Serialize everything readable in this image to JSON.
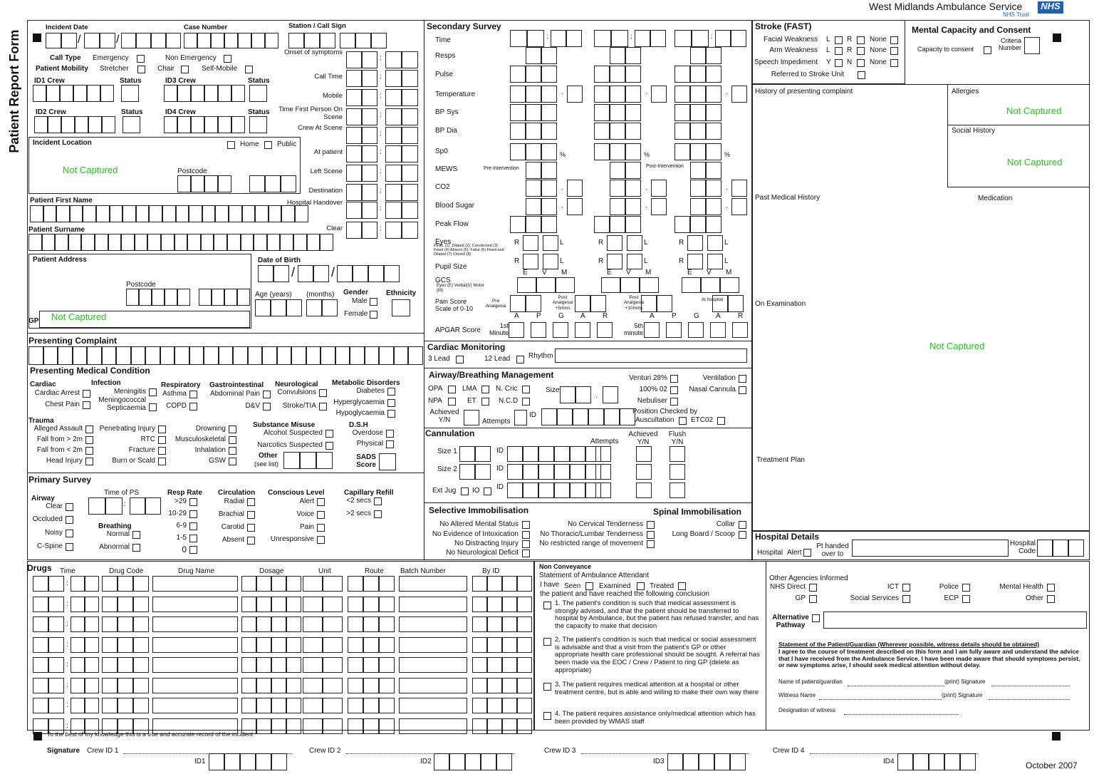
{
  "header": {
    "form_title": "Patient Report Form",
    "org": "West Midlands Ambulance Service",
    "nhs": "NHS",
    "trust": "NHS Trust"
  },
  "symbols": {
    "colon": ":",
    "slash": "/",
    "dot": ".",
    "percent": "%"
  },
  "incident": {
    "incident_date": "Incident Date",
    "case_number": "Case Number",
    "station": "Station / Call Sign",
    "call_type": "Call Type",
    "emergency": "Emergency",
    "non_emergency": "Non Emergency",
    "patient_mobility": "Patient Mobility",
    "stretcher": "Stretcher",
    "chair": "Chair",
    "self_mobile": "Self-Mobile",
    "id1_crew": "ID1 Crew",
    "id2_crew": "ID2 Crew",
    "id3_crew": "ID3 Crew",
    "id4_crew": "ID4 Crew",
    "status": "Status"
  },
  "times": [
    "Onset of symptoms",
    "Call Time",
    "Mobile",
    "Time First Person On Scene",
    "Crew At Scene",
    "At patient",
    "Left Scene",
    "Destination",
    "Hospital Handover",
    "Clear"
  ],
  "location": {
    "title": "Incident Location",
    "home": "Home",
    "public": "Public",
    "value": "Not Captured",
    "postcode": "Postcode"
  },
  "patient": {
    "first_name": "Patient First Name",
    "surname": "Patient Surname",
    "address": "Patient Address",
    "postcode": "Postcode",
    "gp": "GP",
    "gp_value": "Not Captured",
    "dob": "Date of Birth",
    "age": "Age (years)",
    "months": "(months)",
    "gender": "Gender",
    "male": "Male",
    "female": "Female",
    "ethnicity": "Ethnicity"
  },
  "presenting_complaint": "Presenting Complaint",
  "medical_condition": {
    "title": "Presenting Medical Condition",
    "groups": [
      {
        "heading": "Cardiac",
        "items": [
          "Cardiac Arrest",
          "Chest Pain"
        ]
      },
      {
        "heading": "Infection",
        "items": [
          "Meningitis",
          "Meningococcal Septicaemia"
        ]
      },
      {
        "heading": "Respiratory",
        "items": [
          "Asthma",
          "COPD"
        ]
      },
      {
        "heading": "Gastrointestinal",
        "items": [
          "Abdominal Pain",
          "D&V"
        ]
      },
      {
        "heading": "Neurological",
        "items": [
          "Convulsions",
          "Stroke/TIA"
        ]
      },
      {
        "heading": "Metabolic Disorders",
        "items": [
          "Diabetes",
          "Hyperglycaemia",
          "Hypoglycaemia"
        ]
      },
      {
        "heading": "Trauma",
        "items": [
          "Alleged Assault",
          "Fall from > 2m",
          "Fall from < 2m",
          "Head Injury",
          "Penetrating Injury",
          "RTC",
          "Fracture",
          "Burn or Scald",
          "Drowning",
          "Musculoskeletal",
          "Inhalation",
          "GSW"
        ]
      },
      {
        "heading": "Substance Misuse",
        "items": [
          "Alcohol Suspected",
          "Narcotics Suspected"
        ]
      },
      {
        "heading": "D.S.H",
        "items": [
          "Overdose",
          "Physical"
        ]
      }
    ],
    "other": "Other",
    "see_list": "(see list)",
    "sads": "SADS Score"
  },
  "primary_survey": {
    "title": "Primary Survey",
    "time_of_ps": "Time of PS",
    "groups": [
      {
        "heading": "Airway",
        "items": [
          "Clear",
          "Occluded",
          "Noisy",
          "C-Spine"
        ]
      },
      {
        "heading": "Breathing",
        "items": [
          "Normal",
          "Abnormal"
        ]
      },
      {
        "heading": "Resp Rate",
        "items": [
          ">29",
          "10-29",
          "6-9",
          "1-5",
          "0"
        ]
      },
      {
        "heading": "Circulation",
        "items": [
          "Radial",
          "Brachial",
          "Carotid",
          "Absent"
        ]
      },
      {
        "heading": "Conscious Level",
        "items": [
          "Alert",
          "Voice",
          "Pain",
          "Unresponsive"
        ]
      },
      {
        "heading": "Capillary Refill",
        "items": [
          "<2 secs",
          ">2 secs"
        ]
      }
    ]
  },
  "secondary_survey": {
    "title": "Secondary Survey",
    "rows": [
      "Time",
      "Resps",
      "Pulse",
      "Temperature",
      "BP Sys",
      "BP Dia",
      "Sp0",
      "MEWS",
      "CO2",
      "Blood Sugar",
      "Peak Flow",
      "Eyes",
      "Pupil Size",
      "GCS",
      "Pain Score Scale of 0-10",
      "APGAR Score"
    ],
    "pre_intervention": "Pre-Intervention",
    "post_intervention": "Post-Intervention",
    "eyes_key": "PERL (1), Dilated (2), Constricted (3) Fixed (4) Absent (5), False (6) Fixed and Dilated (7) Closed (8)",
    "gcs_key": "Eyes (E) Verbal(V) Motor (M)",
    "right": "R",
    "left": "L",
    "gcs_letters": [
      "E",
      "V",
      "M"
    ],
    "pain_stages": [
      "Pre Analgesia",
      "Post Analgesia +5mins",
      "Post Analgesia +10mins",
      "At hospital"
    ],
    "apgar_letters": [
      "A",
      "P",
      "G",
      "A",
      "R"
    ],
    "first_minute": "1st Minute",
    "fifth_minute": "5th minute"
  },
  "cardiac_monitoring": {
    "title": "Cardiac Monitoring",
    "lead3": "3 Lead",
    "lead12": "12 Lead",
    "rhythm": "Rhythm"
  },
  "airway_management": {
    "title": "Airway/Breathing Management",
    "devices": [
      "OPA",
      "LMA",
      "N. Cric",
      "NPA",
      "ET",
      "N.C.D"
    ],
    "size": "Size",
    "achieved": "Achieved Y/N",
    "attempts": "Attempts",
    "id": "ID",
    "oxygen": [
      "Venturi 28%",
      "100% 02",
      "Nebuliser",
      "Ventilation",
      "Nasal Cannula"
    ],
    "position_checked": "Position Checked by",
    "auscultation": "Auscultation",
    "etco2": "ETC02"
  },
  "cannulation": {
    "title": "Cannulation",
    "attempts": "Attempts",
    "achieved": "Achieved Y/N",
    "flush": "Flush Y/N",
    "size1": "Size 1",
    "size2": "Size 2",
    "id": "ID",
    "ext_jug": "Ext Jug",
    "io": "IO"
  },
  "immobilisation": {
    "title": "Selective Immobilisation",
    "criteria": [
      "No Altered Mental Status",
      "No Evidence of Intoxication",
      "No Distracting Injury",
      "No Neurological Deficit",
      "No Cervical Tenderness",
      "No Thoracic/Lumbar Tenderness",
      "No restricted range of movement"
    ],
    "spinal_title": "Spinal Immobilisation",
    "spinal": [
      "Collar",
      "Long Board / Scoop"
    ]
  },
  "stroke": {
    "title": "Stroke (FAST)",
    "rows": [
      "Facial Weakness",
      "Arm Weakness",
      "Speech Impediment"
    ],
    "l": "L",
    "r": "R",
    "y": "Y",
    "n": "N",
    "none": "None",
    "referred": "Referred to Stroke Unit"
  },
  "mental_capacity": {
    "title": "Mental Capacity and Consent",
    "capacity": "Capacity to consent",
    "criteria": "Criteria Number"
  },
  "history": {
    "presenting": "History of presenting complaint",
    "allergies": "Allergies",
    "allergies_value": "Not Captured",
    "social": "Social History",
    "social_value": "Not Captured",
    "past_medical": "Past Medical History",
    "medication": "Medication",
    "examination": "On Examination",
    "examination_value": "Not Captured",
    "treatment": "Treatment Plan"
  },
  "hospital": {
    "title": "Hospital Details",
    "hospital": "Hospital",
    "alert": "Alert",
    "handed_over": "Pt handed over to",
    "code": "Hospital Code"
  },
  "drugs": {
    "title": "Drugs",
    "columns": [
      "Time",
      "Drug Code",
      "Drug Name",
      "Dosage",
      "Unit",
      "Route",
      "Batch Number",
      "By ID"
    ]
  },
  "non_conveyance": {
    "title": "Non Conveyance",
    "statement": "Statement of Ambulance Attendant",
    "i_have": "I have",
    "seen": "Seen",
    "examined": "Examined",
    "treated": "Treated",
    "conclusion": "the patient and have reached the following conclusion",
    "options": [
      "1. The patient's condition is such that medical assessment is strongly advised, and that the patient should be transferred to hospital by Ambulance, but the patient has refused transfer, and has the capacity to make that decision",
      "2. The patient's condition is such that medical or social assessment is advisable and that a visit from the patient's GP or other appropriate health care professional should be sought. A referral has been made via the EOC / Crew / Patient to ring GP (delete as appropriate)",
      "3. The patient requires medical attention at a hospital or other treatment centre, but is able and willing to make their own way there",
      "4. The patient requires assistance only/medical attention which has been provided by WMAS staff"
    ]
  },
  "agencies": {
    "title": "Other Agencies Informed",
    "items": [
      "NHS Direct",
      "GP",
      "ICT",
      "Social Services",
      "Police",
      "ECP",
      "Mental Health",
      "Other"
    ],
    "alternative": "Alternative Pathway",
    "statement_title": "Statement of the Patient/Guardian (Wherever possible, witness details should be obtained)",
    "statement": "I agree to the course of treatment described on this form and I am fully aware and understand the advice that I have received from the Ambulance Service. I have been made aware that should symptoms persist, or new symptoms arise, I should seek medical attention without delay.",
    "name": "Name of patient/guardian",
    "print_signature": "(print) Signature",
    "witness": "Witness Name",
    "designation": "Designation of witness"
  },
  "footer": {
    "declaration": "To the best of my knowledge this is a true and accurate record of the incident",
    "signature": "Signature",
    "crew_ids": [
      "Crew ID 1",
      "Crew ID 2",
      "Crew ID 3",
      "Crew ID 4"
    ],
    "ids": [
      "ID1",
      "ID2",
      "ID3",
      "ID4"
    ],
    "date": "October 2007"
  }
}
